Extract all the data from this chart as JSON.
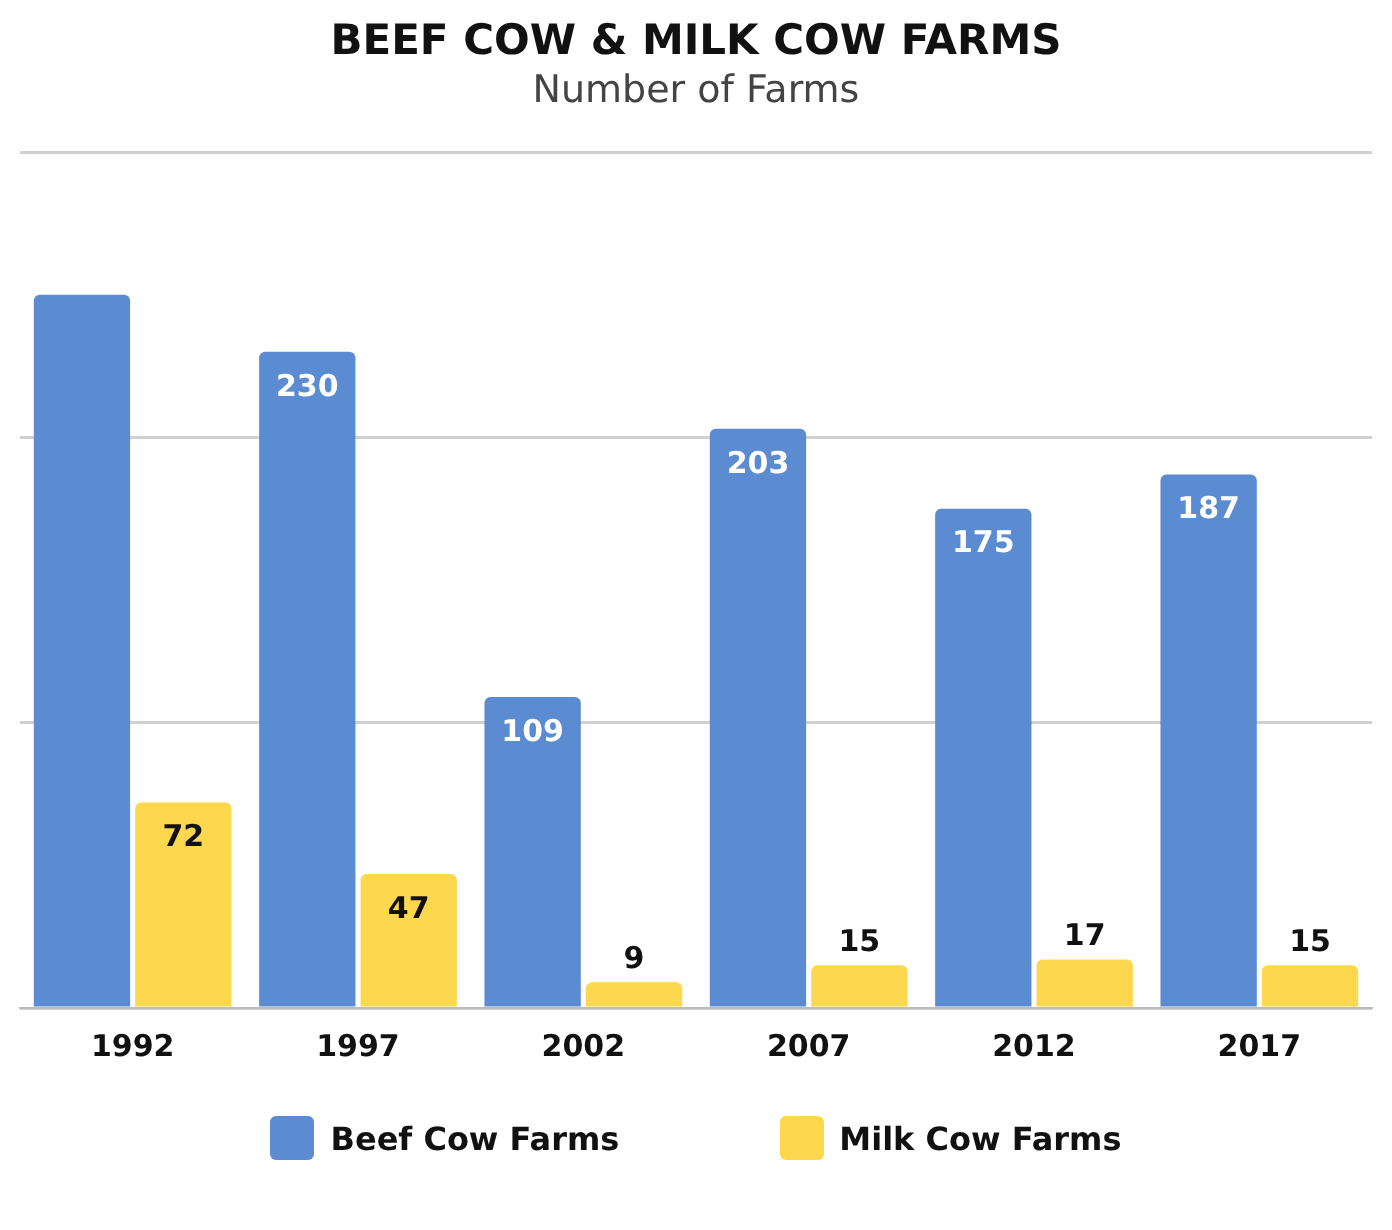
{
  "chart_data": {
    "type": "bar",
    "title": "BEEF COW & MILK COW FARMS",
    "subtitle": "Number of Farms",
    "categories": [
      "1992",
      "1997",
      "2002",
      "2007",
      "2012",
      "2017"
    ],
    "series": [
      {
        "name": "Beef Cow Farms",
        "color": "#5b8bd0",
        "values": [
          250,
          230,
          109,
          203,
          175,
          187
        ],
        "value_labels": [
          null,
          "230",
          "109",
          "203",
          "175",
          "187"
        ]
      },
      {
        "name": "Milk Cow Farms",
        "color": "#fdd84f",
        "values": [
          72,
          47,
          9,
          15,
          17,
          15
        ],
        "value_labels": [
          "72",
          "47",
          "9",
          "15",
          "17",
          "15"
        ]
      }
    ],
    "ylim": [
      0,
      300
    ],
    "yticks": [
      {
        "value": 0,
        "label": null
      },
      {
        "value": 100,
        "label": null
      },
      {
        "value": 200,
        "label": null
      },
      {
        "value": 300,
        "label": null
      }
    ],
    "grid": "y",
    "tick_labels": "x",
    "legend": "bottom"
  }
}
